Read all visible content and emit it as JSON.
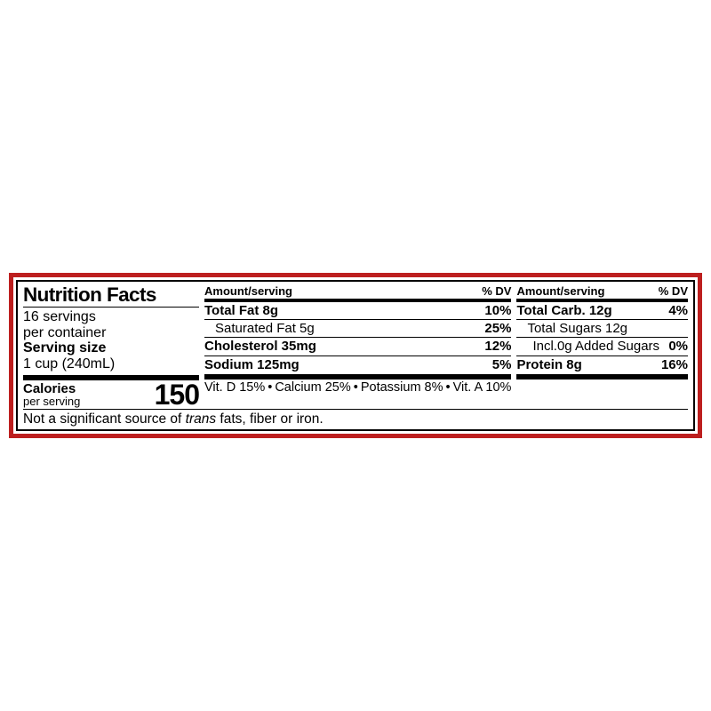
{
  "colors": {
    "border_outer": "#bd1f1f",
    "border_inner": "#000000",
    "background": "#ffffff",
    "text": "#000000"
  },
  "title": "Nutrition Facts",
  "servings_line1": "16 servings",
  "servings_line2": "per container",
  "serving_size_label": "Serving size",
  "serving_size_value": "1 cup (240mL)",
  "calories_label": "Calories",
  "calories_sub": "per serving",
  "calories_value": "150",
  "header_amount": "Amount/serving",
  "header_dv": "% DV",
  "col1": [
    {
      "name": "Total Fat",
      "amount": "8g",
      "dv": "10%",
      "sub": false
    },
    {
      "name": "Saturated Fat",
      "amount": "5g",
      "dv": "25%",
      "sub": true
    },
    {
      "name": "Cholesterol",
      "amount": "35mg",
      "dv": "12%",
      "sub": false
    },
    {
      "name": "Sodium",
      "amount": "125mg",
      "dv": "5%",
      "sub": false
    }
  ],
  "col2": [
    {
      "name": "Total Carb.",
      "amount": "12g",
      "dv": "4%",
      "sub": false
    },
    {
      "name": "Total Sugars",
      "amount": "12g",
      "dv": "",
      "sub": true
    },
    {
      "name": "Incl.0g Added Sugars",
      "amount": "",
      "dv": "0%",
      "sub": true,
      "deep": true
    },
    {
      "name": "Protein",
      "amount": "8g",
      "dv": "16%",
      "sub": false
    }
  ],
  "vitamins": [
    {
      "name": "Vit. D",
      "pct": "15%"
    },
    {
      "name": "Calcium",
      "pct": "25%"
    },
    {
      "name": "Potassium",
      "pct": "8%"
    },
    {
      "name": "Vit. A",
      "pct": "10%"
    }
  ],
  "footnote_prefix": "Not a significant source of ",
  "footnote_italic": "trans",
  "footnote_suffix": " fats, fiber or iron."
}
